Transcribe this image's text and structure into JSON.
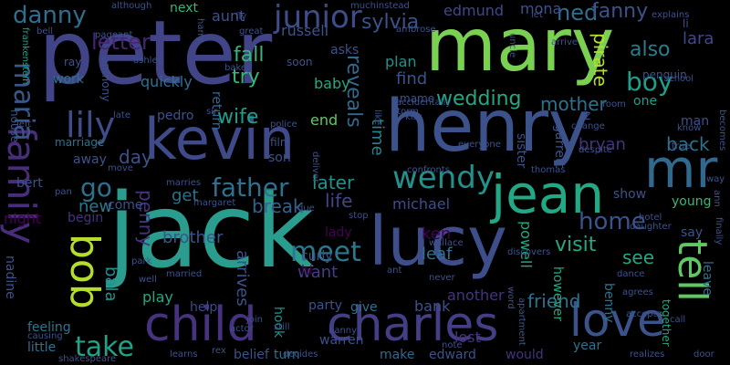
{
  "words": [
    {
      "text": "jack",
      "color": "#2a9d8f"
    },
    {
      "text": "peter",
      "color": "#414487"
    },
    {
      "text": "mary",
      "color": "#7ad151"
    },
    {
      "text": "henry",
      "color": "#3b528b"
    },
    {
      "text": "kevin",
      "color": "#3e4a89"
    },
    {
      "text": "lucy",
      "color": "#3d4e8a"
    },
    {
      "text": "family",
      "color": "#472d7b"
    },
    {
      "text": "jean",
      "color": "#22a884"
    },
    {
      "text": "mr",
      "color": "#31688e"
    },
    {
      "text": "child",
      "color": "#46327e"
    },
    {
      "text": "charles",
      "color": "#433e85"
    },
    {
      "text": "love",
      "color": "#3b528b"
    },
    {
      "text": "tell",
      "color": "#5ec962"
    },
    {
      "text": "bob",
      "color": "#b5de2b"
    },
    {
      "text": "lily",
      "color": "#3e4c8a"
    },
    {
      "text": "father",
      "color": "#2c728e"
    },
    {
      "text": "wendy",
      "color": "#21918c"
    },
    {
      "text": "junior",
      "color": "#3d4d8a"
    },
    {
      "text": "danny",
      "color": "#2e6e8e"
    },
    {
      "text": "letter",
      "color": "#482475"
    },
    {
      "text": "maria",
      "color": "#38588c"
    },
    {
      "text": "meet",
      "color": "#2a788e"
    },
    {
      "text": "take",
      "color": "#20a386"
    },
    {
      "text": "go",
      "color": "#2d708e"
    },
    {
      "text": "home",
      "color": "#3b528b"
    },
    {
      "text": "penny",
      "color": "#46327e"
    },
    {
      "text": "boy",
      "color": "#1f9e89"
    },
    {
      "text": "sylvia",
      "color": "#3b528b"
    },
    {
      "text": "reveals",
      "color": "#31688e"
    },
    {
      "text": "wedding",
      "color": "#22a884"
    },
    {
      "text": "fall",
      "color": "#35b779"
    },
    {
      "text": "try",
      "color": "#35b779"
    },
    {
      "text": "wife",
      "color": "#1f9e89"
    },
    {
      "text": "back",
      "color": "#2c728e"
    },
    {
      "text": "visit",
      "color": "#22a884"
    },
    {
      "text": "see",
      "color": "#22a884"
    },
    {
      "text": "later",
      "color": "#21918c"
    },
    {
      "text": "life",
      "color": "#404688"
    },
    {
      "text": "break",
      "color": "#34618d"
    },
    {
      "text": "day",
      "color": "#3b528b"
    },
    {
      "text": "lara",
      "color": "#3e4989"
    },
    {
      "text": "ned",
      "color": "#2e6e8e"
    },
    {
      "text": "fanny",
      "color": "#3b528b"
    },
    {
      "text": "mother",
      "color": "#2c728e"
    },
    {
      "text": "also",
      "color": "#287c8e"
    },
    {
      "text": "pirate",
      "color": "#b5de2b"
    },
    {
      "text": "bryan",
      "color": "#46327e"
    },
    {
      "text": "friend",
      "color": "#2c728e"
    },
    {
      "text": "time",
      "color": "#26828e"
    },
    {
      "text": "new",
      "color": "#2a788e"
    },
    {
      "text": "bala",
      "color": "#21918c"
    },
    {
      "text": "get",
      "color": "#2c728e"
    },
    {
      "text": "brother",
      "color": "#3b528b"
    },
    {
      "text": "ken",
      "color": "#440154"
    },
    {
      "text": "leaf",
      "color": "#2c728e"
    },
    {
      "text": "powell",
      "color": "#22a884"
    },
    {
      "text": "michael",
      "color": "#3d4d8a"
    },
    {
      "text": "find",
      "color": "#3b528b"
    },
    {
      "text": "arrives",
      "color": "#3b528b"
    },
    {
      "text": "want",
      "color": "#433e85"
    },
    {
      "text": "bank",
      "color": "#3b528b"
    },
    {
      "text": "another",
      "color": "#46327e"
    },
    {
      "text": "lost",
      "color": "#46327e"
    },
    {
      "text": "edmund",
      "color": "#3e4989"
    },
    {
      "text": "aunt",
      "color": "#3b528b"
    },
    {
      "text": "mona",
      "color": "#3b528b"
    },
    {
      "text": "next",
      "color": "#35b779"
    },
    {
      "text": "russell",
      "color": "#3b528b"
    },
    {
      "text": "plan",
      "color": "#21918c"
    },
    {
      "text": "quickly",
      "color": "#2c728e"
    },
    {
      "text": "baby",
      "color": "#22a884"
    },
    {
      "text": "end",
      "color": "#5ec962"
    },
    {
      "text": "return",
      "color": "#31688e"
    },
    {
      "text": "lady",
      "color": "#440154"
    },
    {
      "text": "curly",
      "color": "#3b528b"
    },
    {
      "text": "hi",
      "color": "#440154"
    },
    {
      "text": "night",
      "color": "#440154"
    },
    {
      "text": "begin",
      "color": "#46327e"
    },
    {
      "text": "come",
      "color": "#3b528b"
    },
    {
      "text": "play",
      "color": "#22a884"
    },
    {
      "text": "help",
      "color": "#3e4989"
    },
    {
      "text": "party",
      "color": "#3b528b"
    },
    {
      "text": "give",
      "color": "#2c728e"
    },
    {
      "text": "hook",
      "color": "#21918c"
    },
    {
      "text": "turn",
      "color": "#2c728e"
    },
    {
      "text": "belief",
      "color": "#3b528b"
    },
    {
      "text": "feeling",
      "color": "#2a788e"
    },
    {
      "text": "little",
      "color": "#2c728e"
    },
    {
      "text": "make",
      "color": "#31688e"
    },
    {
      "text": "edward",
      "color": "#3b528b"
    },
    {
      "text": "would",
      "color": "#46327e"
    },
    {
      "text": "year",
      "color": "#2c728e"
    },
    {
      "text": "show",
      "color": "#3b528b"
    },
    {
      "text": "young",
      "color": "#35b779"
    },
    {
      "text": "say",
      "color": "#3b528b"
    },
    {
      "text": "leave",
      "color": "#2c728e"
    },
    {
      "text": "however",
      "color": "#22a884"
    },
    {
      "text": "together",
      "color": "#22a884"
    },
    {
      "text": "benny",
      "color": "#2c728e"
    },
    {
      "text": "sister",
      "color": "#3b528b"
    },
    {
      "text": "garrett",
      "color": "#3b528b"
    },
    {
      "text": "one",
      "color": "#1f9e89"
    },
    {
      "text": "man",
      "color": "#3b528b"
    },
    {
      "text": "nadine",
      "color": "#3b528b"
    },
    {
      "text": "bert",
      "color": "#3b528b"
    },
    {
      "text": "house",
      "color": "#3b528b"
    },
    {
      "text": "work",
      "color": "#2c728e"
    },
    {
      "text": "ray",
      "color": "#3b528b"
    },
    {
      "text": "anthony",
      "color": "#3b528b"
    },
    {
      "text": "frankenstein",
      "color": "#1f9e89"
    },
    {
      "text": "away",
      "color": "#3b528b"
    },
    {
      "text": "marriage",
      "color": "#2c728e"
    },
    {
      "text": "pedro",
      "color": "#3b528b"
    },
    {
      "text": "son",
      "color": "#3b528b"
    },
    {
      "text": "film",
      "color": "#3b528b"
    },
    {
      "text": "soon",
      "color": "#3b528b"
    },
    {
      "text": "asks",
      "color": "#3b528b"
    },
    {
      "text": "penguin",
      "color": "#3b528b"
    },
    {
      "text": "storm",
      "color": "#3b528b"
    },
    {
      "text": "mame",
      "color": "#3b528b"
    },
    {
      "text": "instead",
      "color": "#3b528b"
    },
    {
      "text": "much",
      "color": "#3b528b"
    },
    {
      "text": "pageant",
      "color": "#3b528b"
    },
    {
      "text": "bell",
      "color": "#3b528b"
    },
    {
      "text": "left",
      "color": "#3b528b"
    },
    {
      "text": "ashley",
      "color": "#3b528b"
    },
    {
      "text": "baker",
      "color": "#3b528b"
    },
    {
      "text": "arrive",
      "color": "#3b528b"
    },
    {
      "text": "school",
      "color": "#3b528b"
    },
    {
      "text": "uncle",
      "color": "#3b528b"
    },
    {
      "text": "explains",
      "color": "#3b528b"
    },
    {
      "text": "room",
      "color": "#3b528b"
    },
    {
      "text": "know",
      "color": "#3b528b"
    },
    {
      "text": "change",
      "color": "#3b528b"
    },
    {
      "text": "despite",
      "color": "#3b528b"
    },
    {
      "text": "true",
      "color": "#3b528b"
    },
    {
      "text": "becomes",
      "color": "#3b528b"
    },
    {
      "text": "way",
      "color": "#3b528b"
    },
    {
      "text": "ann",
      "color": "#3b528b"
    },
    {
      "text": "finally",
      "color": "#3b528b"
    },
    {
      "text": "hotel",
      "color": "#3b528b"
    },
    {
      "text": "daughter",
      "color": "#3b528b"
    },
    {
      "text": "dance",
      "color": "#3b528b"
    },
    {
      "text": "agrees",
      "color": "#3b528b"
    },
    {
      "text": "accepts",
      "color": "#3b528b"
    },
    {
      "text": "call",
      "color": "#3b528b"
    },
    {
      "text": "realizes",
      "color": "#3b528b"
    },
    {
      "text": "door",
      "color": "#3b528b"
    },
    {
      "text": "apartment",
      "color": "#3b528b"
    },
    {
      "text": "discovers",
      "color": "#3b528b"
    },
    {
      "text": "word",
      "color": "#3b528b"
    },
    {
      "text": "note",
      "color": "#3b528b"
    },
    {
      "text": "never",
      "color": "#3b528b"
    },
    {
      "text": "ant",
      "color": "#3b528b"
    },
    {
      "text": "wallace",
      "color": "#3b528b"
    },
    {
      "text": "stop",
      "color": "#3b528b"
    },
    {
      "text": "decides",
      "color": "#3b528b"
    },
    {
      "text": "warren",
      "color": "#3b528b"
    },
    {
      "text": "nanny",
      "color": "#3b528b"
    },
    {
      "text": "still",
      "color": "#3b528b"
    },
    {
      "text": "join",
      "color": "#3b528b"
    },
    {
      "text": "actor",
      "color": "#3b528b"
    },
    {
      "text": "rex",
      "color": "#3b528b"
    },
    {
      "text": "learns",
      "color": "#3b528b"
    },
    {
      "text": "married",
      "color": "#3b528b"
    },
    {
      "text": "well",
      "color": "#3b528b"
    },
    {
      "text": "park",
      "color": "#3b528b"
    },
    {
      "text": "shakespeare",
      "color": "#3b528b"
    },
    {
      "text": "causing",
      "color": "#3b528b"
    },
    {
      "text": "pan",
      "color": "#3b528b"
    },
    {
      "text": "move",
      "color": "#3b528b"
    },
    {
      "text": "margaret",
      "color": "#3b528b"
    },
    {
      "text": "marries",
      "color": "#3b528b"
    },
    {
      "text": "due",
      "color": "#3b528b"
    },
    {
      "text": "deliver",
      "color": "#3b528b"
    },
    {
      "text": "police",
      "color": "#3b528b"
    },
    {
      "text": "late",
      "color": "#3b528b"
    },
    {
      "text": "sir",
      "color": "#3b528b"
    },
    {
      "text": "fly",
      "color": "#3b528b"
    },
    {
      "text": "great",
      "color": "#3b528b"
    },
    {
      "text": "harry",
      "color": "#3b528b"
    },
    {
      "text": "although",
      "color": "#3b528b"
    },
    {
      "text": "ambrose",
      "color": "#3b528b"
    },
    {
      "text": "accidentally",
      "color": "#3b528b"
    },
    {
      "text": "kiss",
      "color": "#3b528b"
    },
    {
      "text": "like",
      "color": "#3b528b"
    },
    {
      "text": "let",
      "color": "#3b528b"
    },
    {
      "text": "li",
      "color": "#3b528b"
    },
    {
      "text": "z",
      "color": "#3b528b"
    },
    {
      "text": "everyone",
      "color": "#3b528b"
    },
    {
      "text": "thomas",
      "color": "#3b528b"
    },
    {
      "text": "confronts",
      "color": "#3b528b"
    }
  ]
}
